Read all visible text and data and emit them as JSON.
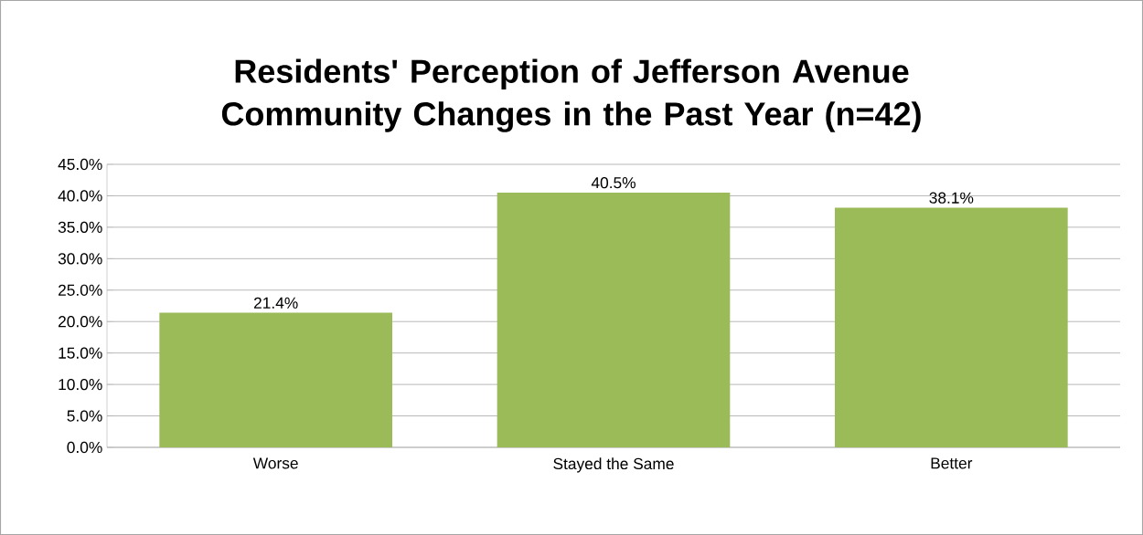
{
  "chart_data": {
    "type": "bar",
    "title": "Residents' Perception of Jefferson Avenue Community Changes in the Past Year (n=42)",
    "categories": [
      "Worse",
      "Stayed the Same",
      "Better"
    ],
    "values": [
      21.4,
      40.5,
      38.1
    ],
    "value_labels": [
      "21.4%",
      "40.5%",
      "38.1%"
    ],
    "color": "#9bbb59",
    "ylim": [
      0,
      45
    ],
    "yticks": [
      {
        "value": 0,
        "label": "0.0%"
      },
      {
        "value": 5,
        "label": "5.0%"
      },
      {
        "value": 10,
        "label": "10.0%"
      },
      {
        "value": 15,
        "label": "15.0%"
      },
      {
        "value": 20,
        "label": "20.0%"
      },
      {
        "value": 25,
        "label": "25.0%"
      },
      {
        "value": 30,
        "label": "30.0%"
      },
      {
        "value": 35,
        "label": "35.0%"
      },
      {
        "value": 40,
        "label": "40.0%"
      },
      {
        "value": 45,
        "label": "45.0%"
      }
    ],
    "grid": "y"
  }
}
